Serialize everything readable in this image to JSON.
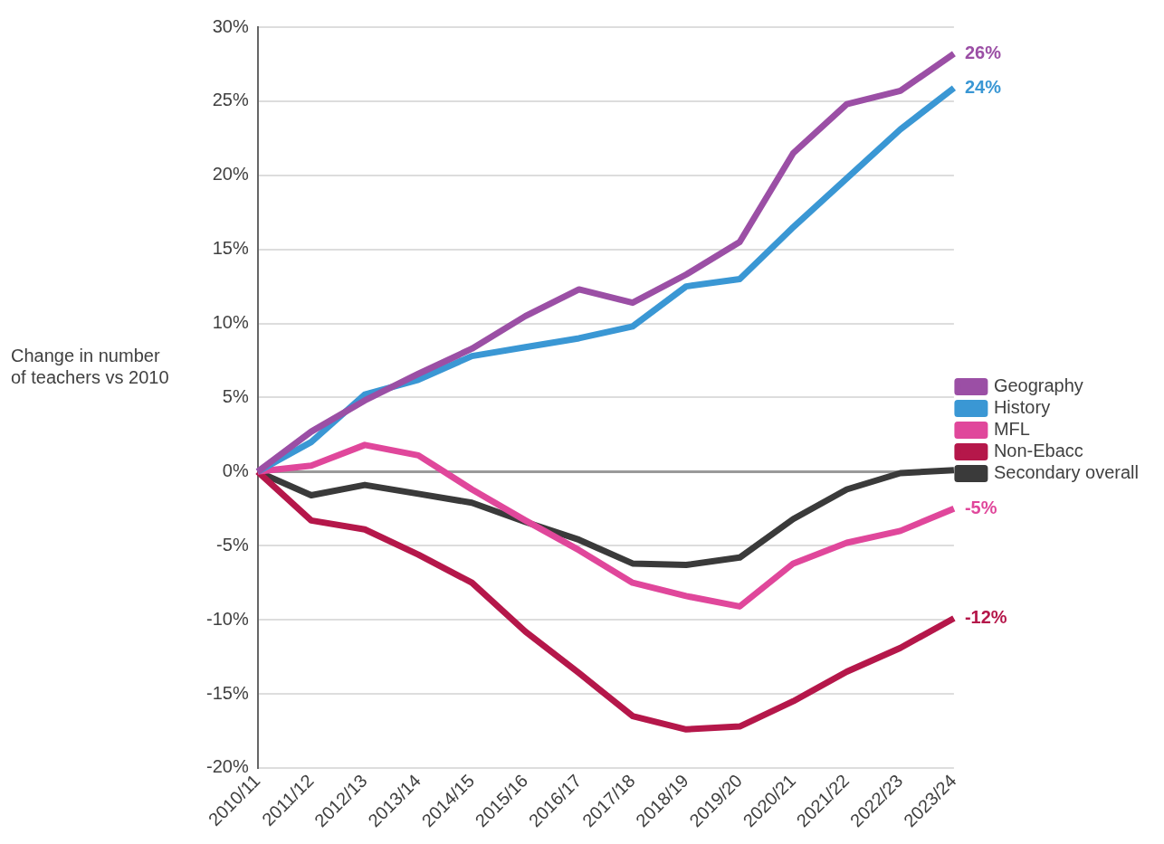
{
  "chart_data": {
    "type": "line",
    "ylabel": "Change in number of teachers vs 2010",
    "categories": [
      "2010/11",
      "2011/12",
      "2012/13",
      "2013/14",
      "2014/15",
      "2015/16",
      "2016/17",
      "2017/18",
      "2018/19",
      "2019/20",
      "2020/21",
      "2021/22",
      "2022/23",
      "2023/24"
    ],
    "series": [
      {
        "name": "Geography",
        "color": "#9b4fa5",
        "values": [
          0,
          2.7,
          4.8,
          6.6,
          8.3,
          10.5,
          12.3,
          11.4,
          13.3,
          15.5,
          21.5,
          24.8,
          25.7,
          28.2
        ]
      },
      {
        "name": "History",
        "color": "#3a97d4",
        "values": [
          0,
          2.0,
          5.2,
          6.2,
          7.8,
          8.4,
          9.0,
          9.8,
          12.5,
          13.0,
          16.5,
          19.8,
          23.1,
          25.9
        ]
      },
      {
        "name": "MFL",
        "color": "#e0479b",
        "values": [
          0,
          0.4,
          1.8,
          1.1,
          -1.2,
          -3.3,
          -5.3,
          -7.5,
          -8.4,
          -9.1,
          -6.2,
          -4.8,
          -4.0,
          -2.5
        ]
      },
      {
        "name": "Non-Ebacc",
        "color": "#b5174a",
        "values": [
          0,
          -3.3,
          -3.9,
          -5.6,
          -7.5,
          -10.8,
          -13.6,
          -16.5,
          -17.4,
          -17.2,
          -15.5,
          -13.5,
          -11.9,
          -9.9
        ]
      },
      {
        "name": "Secondary overall",
        "color": "#3a3a3a",
        "values": [
          0,
          -1.6,
          -0.9,
          -1.5,
          -2.1,
          -3.4,
          -4.6,
          -6.2,
          -6.3,
          -5.8,
          -3.2,
          -1.2,
          -0.1,
          0.1
        ]
      }
    ],
    "ylim": [
      -20,
      30
    ],
    "yticks": [
      {
        "value": -20,
        "label": "-20%"
      },
      {
        "value": -15,
        "label": "-15%"
      },
      {
        "value": -10,
        "label": "-10%"
      },
      {
        "value": -5,
        "label": "-5%"
      },
      {
        "value": 0,
        "label": "0%"
      },
      {
        "value": 5,
        "label": "5%"
      },
      {
        "value": 10,
        "label": "10%"
      },
      {
        "value": 15,
        "label": "15%"
      },
      {
        "value": 20,
        "label": "20%"
      },
      {
        "value": 25,
        "label": "25%"
      },
      {
        "value": 30,
        "label": "30%"
      }
    ],
    "annotations": [
      {
        "text": "26%",
        "x": "2023/24",
        "y": 28.2
      },
      {
        "text": "24%",
        "x": "2023/24",
        "y": 25.9
      },
      {
        "text": "-5%",
        "x": "2023/24",
        "y": -2.5
      },
      {
        "text": "-12%",
        "x": "2023/24",
        "y": -9.9
      }
    ],
    "grid": "y",
    "legend": "right",
    "marker": "none",
    "line_style": "solid"
  }
}
